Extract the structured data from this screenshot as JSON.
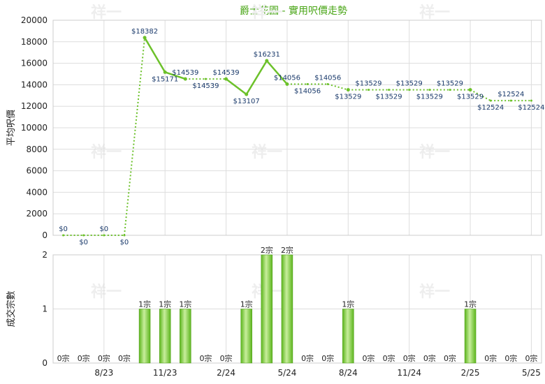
{
  "title": "爵士花園 - 實用呎價走勢",
  "colors": {
    "line": "#6cc12a",
    "bar": "#5cb51d",
    "bar_light": "#c8ee9c",
    "grid": "#dddddd",
    "title": "#4aa617"
  },
  "watermark": "祥一",
  "chart_data": [
    {
      "type": "line",
      "ylabel": "平均呎價",
      "ylim": [
        0,
        20000
      ],
      "yticks": [
        "0",
        "2000",
        "4000",
        "6000",
        "8000",
        "10000",
        "12000",
        "14000",
        "16000",
        "18000",
        "20000"
      ],
      "x": [
        "2023-06",
        "2023-07",
        "2023-08",
        "2023-09",
        "2023-10",
        "2023-11",
        "2023-12",
        "2024-01",
        "2024-02",
        "2024-03",
        "2024-04",
        "2024-05",
        "2024-06",
        "2024-07",
        "2024-08",
        "2024-09",
        "2024-10",
        "2024-11",
        "2024-12",
        "2025-01",
        "2025-02",
        "2025-03",
        "2025-04",
        "2025-05"
      ],
      "values": [
        0,
        0,
        0,
        0,
        18382,
        15171,
        14539,
        14539,
        14539,
        13107,
        16231,
        14056,
        14056,
        14056,
        13529,
        13529,
        13529,
        13529,
        13529,
        13529,
        13529,
        12524,
        12524,
        12524
      ],
      "labels": [
        "$0",
        "$0",
        "$0",
        "$0",
        "$18382",
        "$15171",
        "$14539",
        "$14539",
        "$14539",
        "$13107",
        "$16231",
        "$14056",
        "$14056",
        "$14056",
        "$13529",
        "$13529",
        "$13529",
        "$13529",
        "$13529",
        "$13529",
        "$13529",
        "$12524",
        "$12524",
        "$12524"
      ],
      "actual": [
        false,
        false,
        false,
        false,
        true,
        true,
        true,
        false,
        true,
        true,
        true,
        true,
        false,
        false,
        true,
        false,
        false,
        false,
        false,
        false,
        true,
        false,
        false,
        false
      ],
      "label_pos": [
        "above",
        "below",
        "above",
        "below",
        "above",
        "below",
        "above",
        "below",
        "above",
        "below",
        "above",
        "above",
        "below",
        "above",
        "below",
        "above",
        "below",
        "above",
        "below",
        "above",
        "below",
        "below",
        "above",
        "below"
      ]
    },
    {
      "type": "bar",
      "ylabel": "成交宗數",
      "ylim": [
        0,
        2
      ],
      "yticks": [
        "0",
        "1",
        "2"
      ],
      "x_tick_labels": [
        "8/23",
        "11/23",
        "2/24",
        "5/24",
        "8/24",
        "11/24",
        "2/25",
        "5/25"
      ],
      "x": [
        "2023-06",
        "2023-07",
        "2023-08",
        "2023-09",
        "2023-10",
        "2023-11",
        "2023-12",
        "2024-01",
        "2024-02",
        "2024-03",
        "2024-04",
        "2024-05",
        "2024-06",
        "2024-07",
        "2024-08",
        "2024-09",
        "2024-10",
        "2024-11",
        "2024-12",
        "2025-01",
        "2025-02",
        "2025-03",
        "2025-04",
        "2025-05"
      ],
      "values": [
        0,
        0,
        0,
        0,
        1,
        1,
        1,
        0,
        0,
        1,
        2,
        2,
        0,
        0,
        1,
        0,
        0,
        0,
        0,
        0,
        1,
        0,
        0,
        0
      ],
      "labels": [
        "0宗",
        "0宗",
        "0宗",
        "0宗",
        "1宗",
        "1宗",
        "1宗",
        "0宗",
        "0宗",
        "1宗",
        "2宗",
        "2宗",
        "0宗",
        "0宗",
        "1宗",
        "0宗",
        "0宗",
        "0宗",
        "0宗",
        "0宗",
        "1宗",
        "0宗",
        "0宗",
        "0宗"
      ]
    }
  ]
}
